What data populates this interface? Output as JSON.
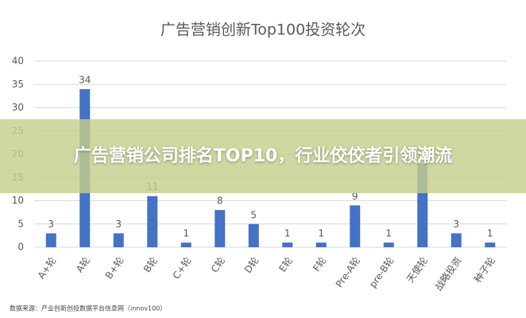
{
  "chart_data": {
    "type": "bar",
    "title": "广告营销创新Top100投资轮次",
    "categories": [
      "A+轮",
      "A轮",
      "B+轮",
      "B轮",
      "C+轮",
      "C轮",
      "D轮",
      "E轮",
      "F轮",
      "Pre-A轮",
      "pre-B轮",
      "天使轮",
      "战略投资",
      "种子轮"
    ],
    "values": [
      3,
      34,
      3,
      11,
      1,
      8,
      5,
      1,
      1,
      9,
      1,
      18,
      3,
      1
    ],
    "color": "#4472c4",
    "ylim": [
      0,
      40
    ],
    "yticks": [
      0,
      5,
      10,
      15,
      20,
      25,
      30,
      35,
      40
    ],
    "grid": true,
    "source": "数据来源：产业创新创投数据平台信息网（innov100）"
  },
  "overlay": {
    "headline": "广告营销公司排名TOP10，行业佼佼者引领潮流"
  }
}
